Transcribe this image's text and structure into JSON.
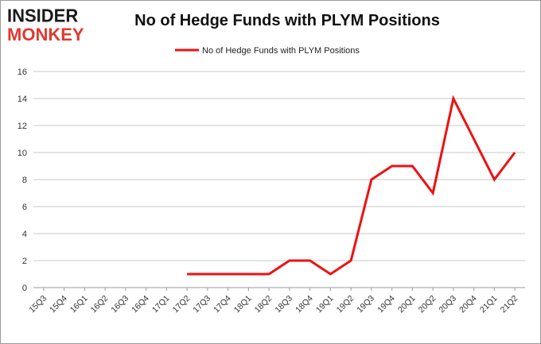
{
  "logo": {
    "line1": "INSIDER",
    "line2": "MONKEY"
  },
  "colors": {
    "series": "#ee1111",
    "grid": "#c8c8c8",
    "axis_text": "#333333",
    "logo_dark": "#1a1a1a",
    "logo_red": "#e03a2f"
  },
  "chart_data": {
    "type": "line",
    "title": "No of Hedge Funds with PLYM Positions",
    "xlabel": "",
    "ylabel": "",
    "legend_position": "top-center",
    "grid": true,
    "ylim": [
      0,
      16
    ],
    "yticks": [
      0,
      2,
      4,
      6,
      8,
      10,
      12,
      14,
      16
    ],
    "categories": [
      "15Q3",
      "15Q4",
      "16Q1",
      "16Q2",
      "16Q3",
      "16Q4",
      "17Q1",
      "17Q2",
      "17Q3",
      "17Q4",
      "18Q1",
      "18Q2",
      "18Q3",
      "18Q4",
      "19Q1",
      "19Q2",
      "19Q3",
      "19Q4",
      "20Q1",
      "20Q2",
      "20Q3",
      "20Q4",
      "21Q1",
      "21Q2"
    ],
    "series": [
      {
        "name": "No of Hedge Funds with PLYM Positions",
        "values": [
          null,
          null,
          null,
          null,
          null,
          null,
          null,
          1,
          1,
          1,
          1,
          1,
          2,
          2,
          1,
          2,
          8,
          9,
          9,
          7,
          14,
          11,
          8,
          10
        ]
      }
    ]
  }
}
